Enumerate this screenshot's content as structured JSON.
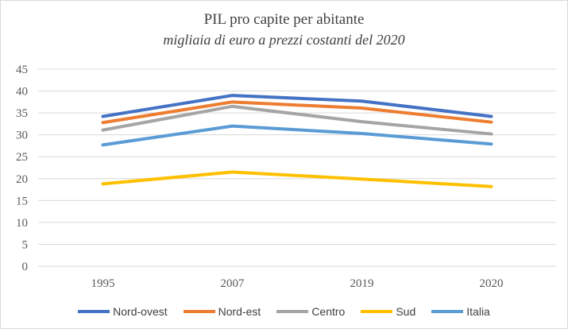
{
  "chart_data": {
    "type": "line",
    "title": "PIL pro capite per abitante",
    "subtitle": "migliaia di euro a prezzi costanti del 2020",
    "xlabel": "",
    "ylabel": "",
    "categories": [
      "1995",
      "2007",
      "2019",
      "2020"
    ],
    "ylim": [
      0,
      45
    ],
    "yticks": [
      "0",
      "5",
      "10",
      "15",
      "20",
      "25",
      "30",
      "35",
      "40",
      "45"
    ],
    "grid": true,
    "legend_position": "bottom",
    "series": [
      {
        "name": "Nord-ovest",
        "color": "#4472c4",
        "values": [
          34.2,
          39.0,
          37.7,
          34.2
        ]
      },
      {
        "name": "Nord-est",
        "color": "#ed7d31",
        "values": [
          32.8,
          37.5,
          36.1,
          32.9
        ]
      },
      {
        "name": "Centro",
        "color": "#a5a5a5",
        "values": [
          31.1,
          36.5,
          33.0,
          30.2
        ]
      },
      {
        "name": "Sud",
        "color": "#ffc000",
        "values": [
          18.8,
          21.5,
          19.9,
          18.2
        ]
      },
      {
        "name": "Italia",
        "color": "#5b9bd5",
        "values": [
          27.7,
          32.0,
          30.3,
          27.9
        ]
      }
    ]
  }
}
